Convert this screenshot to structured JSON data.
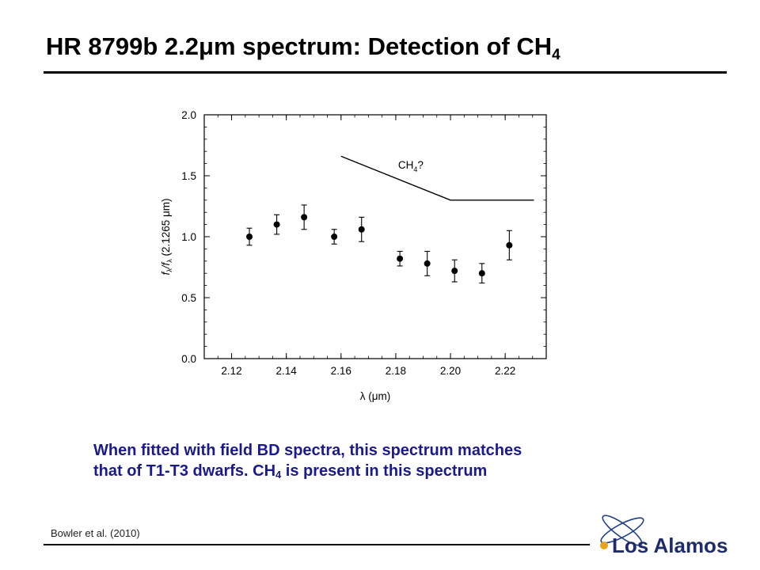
{
  "slide": {
    "title_main": "HR 8799b 2.2μm spectrum: Detection of CH",
    "title_sub": "4",
    "caption_line1": "When fitted with field BD spectra, this spectrum matches",
    "caption_line2_a": "that of T1-T3 dwarfs.  CH",
    "caption_line2_sub": "4",
    "caption_line2_b": " is present in this spectrum",
    "citation": "Bowler et al. (2010)",
    "logo_text": "Los Alamos"
  },
  "chart_data": {
    "type": "scatter",
    "xlabel": "λ (μm)",
    "ylabel_parts": [
      "f",
      "λ",
      "/f",
      "λ",
      " (2.1265 μm)"
    ],
    "xlim": [
      2.11,
      2.235
    ],
    "ylim": [
      0.0,
      2.0
    ],
    "xticks": [
      2.12,
      2.14,
      2.16,
      2.18,
      2.2,
      2.22
    ],
    "xtick_labels": [
      "2.12",
      "2.14",
      "2.16",
      "2.18",
      "2.20",
      "2.22"
    ],
    "yticks": [
      0.0,
      0.5,
      1.0,
      1.5,
      2.0
    ],
    "ytick_labels": [
      "0.0",
      "0.5",
      "1.0",
      "1.5",
      "2.0"
    ],
    "grid": false,
    "points": [
      {
        "x": 2.1265,
        "y": 1.0,
        "err": 0.07
      },
      {
        "x": 2.1365,
        "y": 1.1,
        "err": 0.08
      },
      {
        "x": 2.1465,
        "y": 1.16,
        "err": 0.1
      },
      {
        "x": 2.1575,
        "y": 1.0,
        "err": 0.06
      },
      {
        "x": 2.1675,
        "y": 1.06,
        "err": 0.1
      },
      {
        "x": 2.1815,
        "y": 0.82,
        "err": 0.06
      },
      {
        "x": 2.1915,
        "y": 0.78,
        "err": 0.1
      },
      {
        "x": 2.2015,
        "y": 0.72,
        "err": 0.09
      },
      {
        "x": 2.2115,
        "y": 0.7,
        "err": 0.08
      },
      {
        "x": 2.2215,
        "y": 0.93,
        "err": 0.12
      }
    ],
    "ch4_line": {
      "x": [
        2.16,
        2.2,
        2.2305
      ],
      "y": [
        1.66,
        1.3,
        1.3
      ]
    },
    "annotation": {
      "label_main": "CH",
      "label_sub": "4",
      "label_tail": "?",
      "x": 2.1855,
      "y": 1.59
    }
  }
}
